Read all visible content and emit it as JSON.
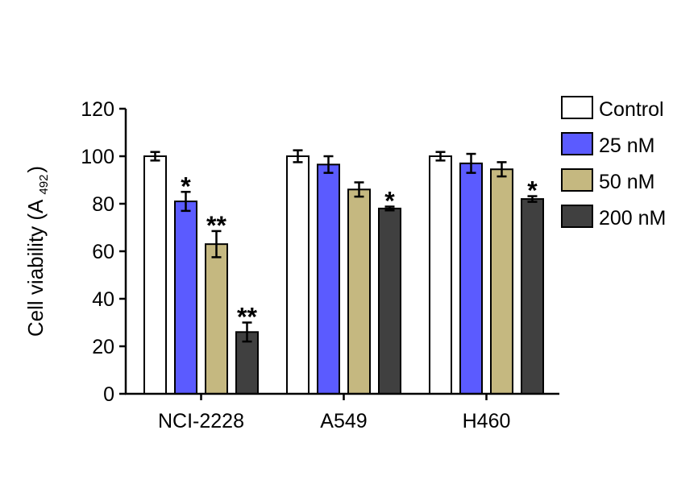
{
  "chart_data": {
    "type": "bar",
    "title": "",
    "ylabel": {
      "main": "Cell viability (A",
      "sub": "492",
      "close": ")"
    },
    "ylim": [
      0,
      120
    ],
    "yticks": [
      "0",
      "20",
      "40",
      "60",
      "80",
      "100",
      "120"
    ],
    "grid": false,
    "legend_position": "top-right",
    "categories": [
      "NCI-2228",
      "A549",
      "H460"
    ],
    "series": [
      {
        "name": "Control",
        "color": "#ffffff",
        "values": [
          100,
          100,
          100
        ],
        "errors": [
          1.8,
          2.5,
          1.8
        ],
        "sig": [
          "",
          "",
          ""
        ]
      },
      {
        "name": "25 nM",
        "color": "#5b5bff",
        "values": [
          81,
          96.5,
          97
        ],
        "errors": [
          4,
          3.5,
          4
        ],
        "sig": [
          "*",
          "",
          ""
        ]
      },
      {
        "name": "50 nM",
        "color": "#c5b880",
        "values": [
          63,
          86,
          94.5
        ],
        "errors": [
          5.5,
          3,
          3
        ],
        "sig": [
          "**",
          "",
          ""
        ]
      },
      {
        "name": "200 nM",
        "color": "#404040",
        "values": [
          26,
          78,
          82
        ],
        "errors": [
          4,
          0.8,
          1.2
        ],
        "sig": [
          "**",
          "*",
          "*"
        ]
      }
    ]
  }
}
